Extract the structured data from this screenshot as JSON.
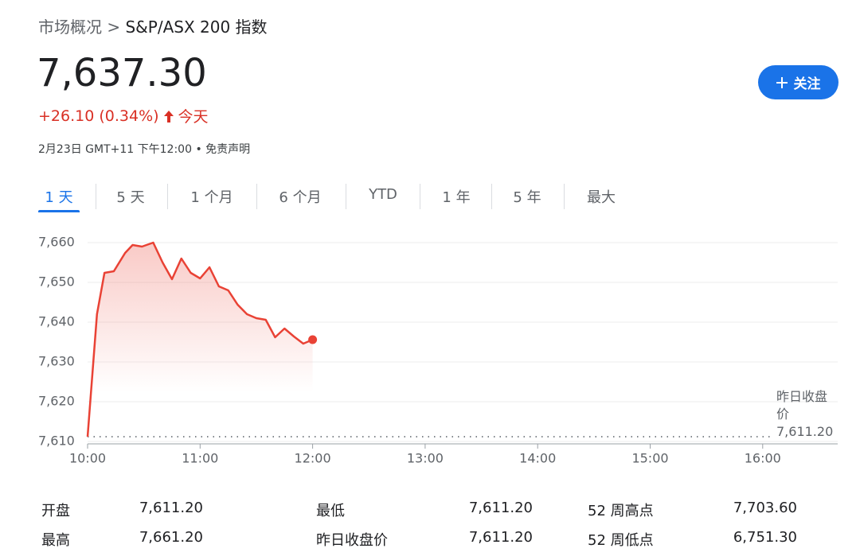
{
  "breadcrumb": {
    "parent": "市场概况",
    "separator": ">",
    "current": "S&P/ASX 200 指数"
  },
  "quote": {
    "price": "7,637.30",
    "change": "+26.10 (0.34%)",
    "period": "今天"
  },
  "timestamp": {
    "time": "2月23日 GMT+11 下午12:00",
    "separator": "•",
    "disclaimer": "免责声明"
  },
  "follow_button": "关注",
  "tabs": [
    "1 天",
    "5 天",
    "1 个月",
    "6 个月",
    "YTD",
    "1 年",
    "5 年",
    "最大"
  ],
  "active_tab": 0,
  "chart_data": {
    "type": "line",
    "color": "#e94235",
    "grid": true,
    "x": [
      "10:00",
      "10:05",
      "10:09",
      "10:14",
      "10:20",
      "10:24",
      "10:29",
      "10:35",
      "10:40",
      "10:45",
      "10:50",
      "10:55",
      "11:00",
      "11:05",
      "11:10",
      "11:15",
      "11:20",
      "11:25",
      "11:30",
      "11:35",
      "11:40",
      "11:45",
      "11:50",
      "11:55",
      "12:00"
    ],
    "values": [
      7611.2,
      7642,
      7652.4,
      7652.8,
      7657.4,
      7659.4,
      7659,
      7660,
      7655,
      7650.8,
      7656,
      7652.4,
      7651,
      7653.8,
      7649,
      7648,
      7644.4,
      7642,
      7641,
      7640.6,
      7636.2,
      7638.4,
      7636.4,
      7634.6,
      7635.6
    ],
    "xlim": [
      "10:00",
      "16:40"
    ],
    "xticks": [
      "10:00",
      "11:00",
      "12:00",
      "13:00",
      "14:00",
      "15:00",
      "16:00"
    ],
    "ylim": [
      7610,
      7662
    ],
    "yticks": [
      {
        "value": 7610,
        "label": "7,610"
      },
      {
        "value": 7620,
        "label": "7,620"
      },
      {
        "value": 7630,
        "label": "7,630"
      },
      {
        "value": 7640,
        "label": "7,640"
      },
      {
        "value": 7650,
        "label": "7,650"
      },
      {
        "value": 7660,
        "label": "7,660"
      }
    ],
    "reference_line": {
      "label": "昨日收盘价",
      "value": 7611.2,
      "value_label": "7,611.20"
    }
  },
  "stats": [
    [
      "开盘",
      "7,611.20"
    ],
    [
      "最高",
      "7,661.20"
    ],
    [
      "最低",
      "7,611.20"
    ],
    [
      "昨日收盘价",
      "7,611.20"
    ],
    [
      "52 周高点",
      "7,703.60"
    ],
    [
      "52 周低点",
      "6,751.30"
    ]
  ]
}
